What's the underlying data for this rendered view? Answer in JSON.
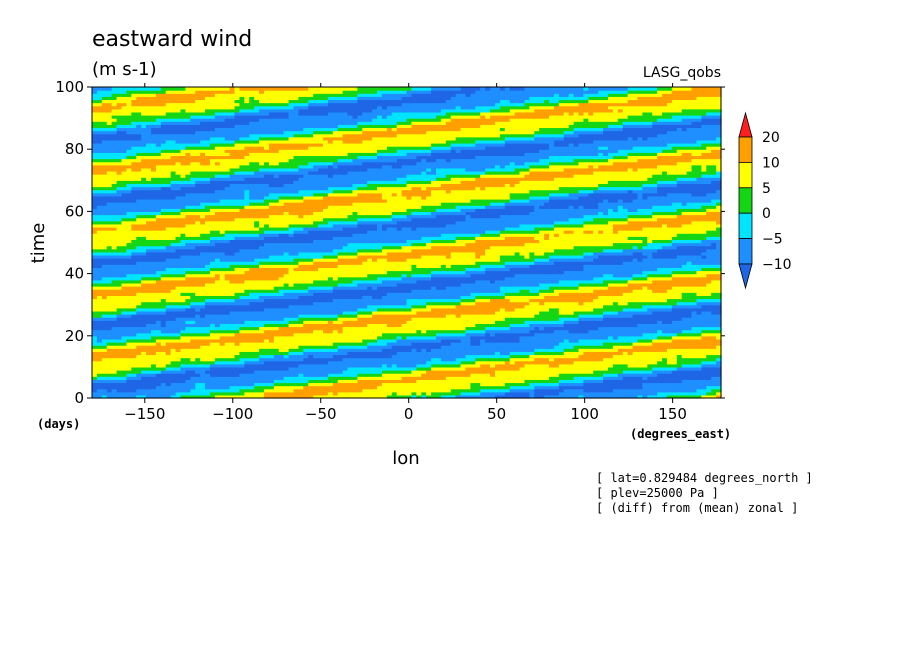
{
  "chart_data": {
    "type": "heatmap",
    "title": "eastward wind",
    "units": "(m s-1)",
    "source_label": "LASG_qobs",
    "xlabel": "lon",
    "x_units": "(degrees_east)",
    "ylabel": "time",
    "y_units": "(days)",
    "xlim": [
      -180,
      177.5
    ],
    "ylim": [
      0,
      100
    ],
    "x_ticks": [
      -150,
      -100,
      -50,
      0,
      50,
      100,
      150
    ],
    "x_tick_labels": [
      "-150",
      "-100",
      "-50",
      "0",
      "50",
      "100",
      "150"
    ],
    "y_ticks": [
      0,
      20,
      40,
      60,
      80,
      100
    ],
    "y_tick_labels": [
      "0",
      "20",
      "40",
      "60",
      "80",
      "100"
    ],
    "colorbar": {
      "levels": [
        -10,
        -5,
        0,
        5,
        10,
        20
      ],
      "level_labels": [
        "-10",
        "-5",
        "0",
        "5",
        "10",
        "20"
      ],
      "colors": [
        "#1f66e6",
        "#1f8fff",
        "#00e5ff",
        "#15d615",
        "#ffff00",
        "#ff9f00",
        "#ff1f1f"
      ]
    },
    "pattern": {
      "description_of_field": "eastward-propagating alternating bands of positive and negative anomalies",
      "band_slope_days_per_degree": 0.072,
      "band_period_days": 20
    }
  },
  "notes": {
    "line1": "[ lat=0.829484 degrees_north ]",
    "line2": "[ plev=25000 Pa ]",
    "line3": "[ (diff) from (mean) zonal ]"
  }
}
